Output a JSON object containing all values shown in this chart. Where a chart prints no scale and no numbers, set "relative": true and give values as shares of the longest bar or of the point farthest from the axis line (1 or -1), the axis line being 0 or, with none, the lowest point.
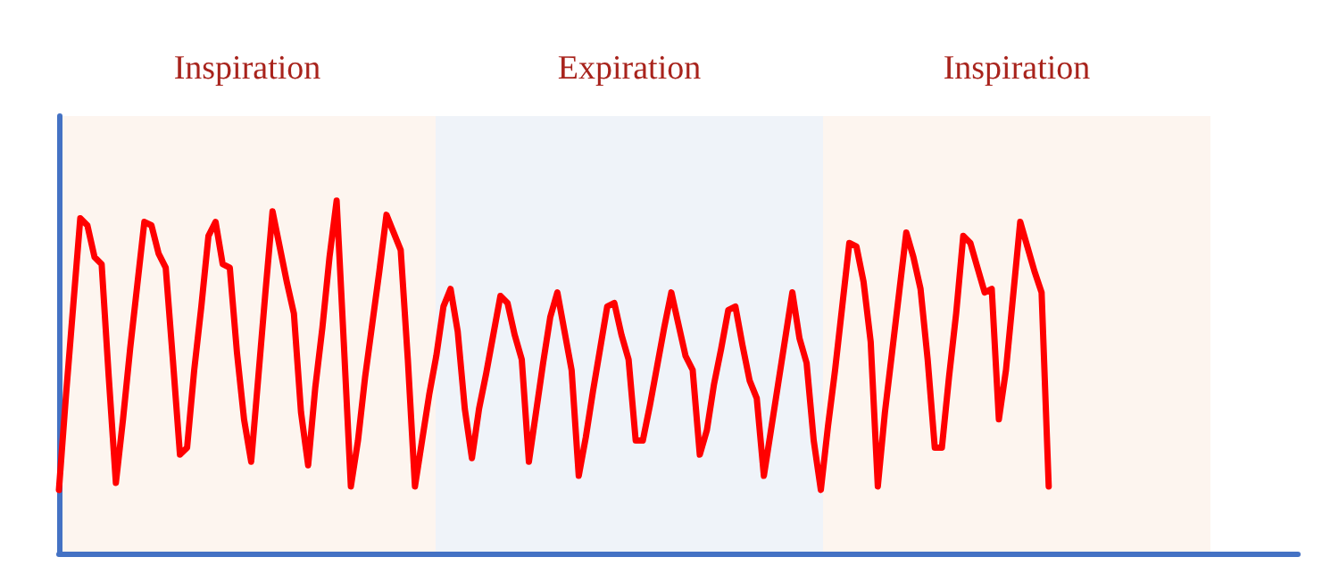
{
  "chart_data": {
    "type": "line",
    "relative": true,
    "line_style": "solid",
    "annotations": [
      "Inspiration",
      "Expiration",
      "Inspiration"
    ],
    "categories": [
      null,
      null,
      null,
      null,
      null,
      null,
      null,
      null,
      null,
      null,
      null,
      null,
      null,
      null,
      null,
      null,
      null,
      null,
      null,
      null,
      null,
      null,
      null,
      null,
      null,
      null,
      null,
      null,
      null,
      null,
      null,
      null,
      null,
      null,
      null,
      null,
      null,
      null,
      null,
      null,
      null,
      null,
      null,
      null,
      null,
      null,
      null,
      null,
      null,
      null,
      null,
      null,
      null,
      null,
      null,
      null,
      null,
      null,
      null,
      null,
      null,
      null,
      null,
      null,
      null,
      null,
      null,
      null,
      null,
      null,
      null,
      null,
      null,
      null,
      null,
      null,
      null,
      null,
      null,
      null,
      null,
      null,
      null,
      null,
      null,
      null,
      null,
      null,
      null,
      null,
      null,
      null,
      null,
      null,
      null,
      null,
      null,
      null,
      null,
      null,
      null,
      null,
      null,
      null,
      null,
      null,
      null,
      null,
      null,
      null,
      null,
      null,
      null,
      null,
      null,
      null,
      null,
      null,
      null,
      null,
      null,
      null,
      null,
      null,
      null,
      null,
      null,
      null,
      null,
      null,
      null,
      null,
      null,
      null,
      null,
      null,
      null,
      null,
      null,
      null
    ],
    "series": [
      {
        "color": "#ff0000",
        "values": [
          0.18,
          0.45,
          0.7,
          0.95,
          0.93,
          0.84,
          0.82,
          0.5,
          0.2,
          0.38,
          0.58,
          0.76,
          0.94,
          0.93,
          0.85,
          0.81,
          0.55,
          0.28,
          0.3,
          0.52,
          0.7,
          0.9,
          0.94,
          0.82,
          0.81,
          0.57,
          0.38,
          0.26,
          0.5,
          0.74,
          0.97,
          0.87,
          0.77,
          0.68,
          0.4,
          0.25,
          0.47,
          0.64,
          0.84,
          1.0,
          0.6,
          0.19,
          0.32,
          0.5,
          0.65,
          0.8,
          0.96,
          0.91,
          0.86,
          0.55,
          0.19,
          0.32,
          0.45,
          0.56,
          0.7,
          0.75,
          0.63,
          0.41,
          0.27,
          0.41,
          0.51,
          0.62,
          0.73,
          0.71,
          0.62,
          0.55,
          0.26,
          0.4,
          0.54,
          0.67,
          0.74,
          0.63,
          0.52,
          0.22,
          0.33,
          0.46,
          0.58,
          0.7,
          0.71,
          0.62,
          0.55,
          0.32,
          0.32,
          0.42,
          0.53,
          0.64,
          0.74,
          0.65,
          0.56,
          0.52,
          0.28,
          0.35,
          0.48,
          0.58,
          0.69,
          0.7,
          0.59,
          0.49,
          0.44,
          0.22,
          0.35,
          0.48,
          0.61,
          0.74,
          0.61,
          0.54,
          0.32,
          0.18,
          0.36,
          0.52,
          0.7,
          0.88,
          0.87,
          0.77,
          0.6,
          0.19,
          0.4,
          0.57,
          0.74,
          0.91,
          0.84,
          0.75,
          0.55,
          0.3,
          0.3,
          0.5,
          0.68,
          0.9,
          0.88,
          0.81,
          0.74,
          0.75,
          0.38,
          0.52,
          0.73,
          0.94,
          0.87,
          0.8,
          0.74,
          0.19
        ]
      }
    ]
  }
}
